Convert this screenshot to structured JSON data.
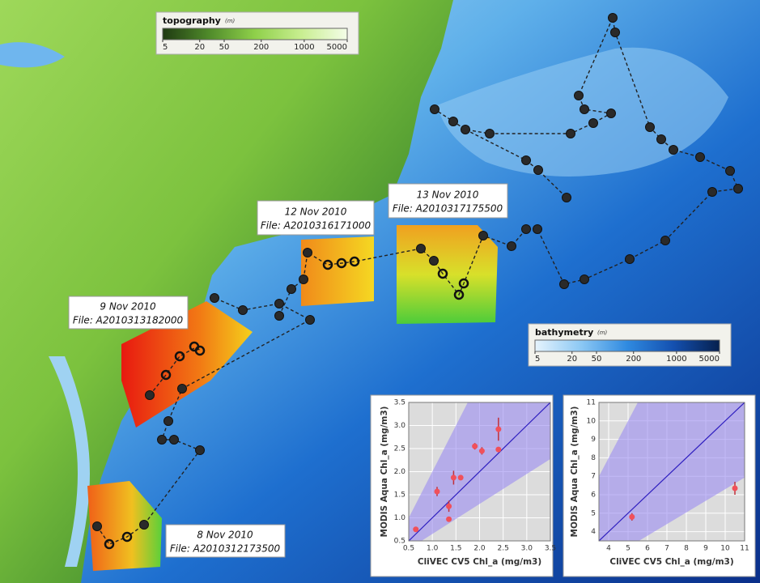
{
  "map": {
    "topography_legend": {
      "title": "topography",
      "unit": "(m)",
      "scale": "log",
      "lim": [
        5,
        5000
      ],
      "ticks": [
        5,
        20,
        50,
        200,
        1000,
        5000
      ]
    },
    "bathymetry_legend": {
      "title": "bathymetry",
      "unit": "(m)",
      "scale": "log",
      "lim": [
        5,
        5000
      ],
      "ticks": [
        5,
        20,
        50,
        200,
        1000,
        5000
      ]
    },
    "swath_labels": [
      {
        "date": "12 Nov 2010",
        "file": "File: A2010316171000"
      },
      {
        "date": "13 Nov 2010",
        "file": "File: A2010317175500"
      },
      {
        "date": "9 Nov 2010",
        "file": "File: A2010313182000"
      },
      {
        "date": "8 Nov 2010",
        "file": "File: A2010312173500"
      }
    ]
  },
  "chart_data": [
    {
      "type": "scatter",
      "x_label": "CliVEC CV5 Chl_a (mg/m3)",
      "y_label": "MODIS Aqua Chl_a (mg/m3)",
      "xlim": [
        0.5,
        3.5
      ],
      "ylim": [
        0.5,
        3.5
      ],
      "xticks": [
        0.5,
        {
          "value": 1,
          "label": "1.0"
        },
        1.5,
        {
          "value": 2,
          "label": "2.0"
        },
        2.5,
        {
          "value": 3,
          "label": "3.0"
        },
        3.5
      ],
      "yticks": [
        0.5,
        {
          "value": 1,
          "label": "1.0"
        },
        1.5,
        {
          "value": 2,
          "label": "2.0"
        },
        2.5,
        {
          "value": 3,
          "label": "3.0"
        },
        3.5
      ],
      "grid": true,
      "one_to_one_line": true,
      "band_ratio": [
        0.65,
        2
      ],
      "color": "#f0505a",
      "x": [
        0.65,
        1.1,
        1.35,
        1.35,
        1.45,
        1.6,
        1.9,
        2.05,
        2.4,
        2.4
      ],
      "values": [
        0.75,
        1.57,
        1.25,
        0.97,
        1.87,
        1.87,
        2.55,
        2.45,
        2.92,
        2.48
      ],
      "errors": [
        0.03,
        0.1,
        0.12,
        0.03,
        0.15,
        0.03,
        0.07,
        0.08,
        0.25,
        0.03
      ]
    },
    {
      "type": "scatter",
      "x_label": "CliVEC CV5 Chl_a (mg/m3)",
      "y_label": "MODIS Aqua Chl_a (mg/m3)",
      "xlim": [
        3.5,
        11
      ],
      "ylim": [
        3.5,
        11
      ],
      "xticks": [
        4,
        5,
        6,
        7,
        8,
        9,
        10,
        11
      ],
      "yticks": [
        4,
        5,
        6,
        7,
        8,
        9,
        10,
        11
      ],
      "grid": true,
      "one_to_one_line": true,
      "band_ratio": [
        0.63,
        2
      ],
      "color": "#f0505a",
      "x": [
        5.2,
        10.5
      ],
      "values": [
        4.8,
        6.35
      ],
      "errors": [
        0.2,
        0.35
      ]
    }
  ]
}
